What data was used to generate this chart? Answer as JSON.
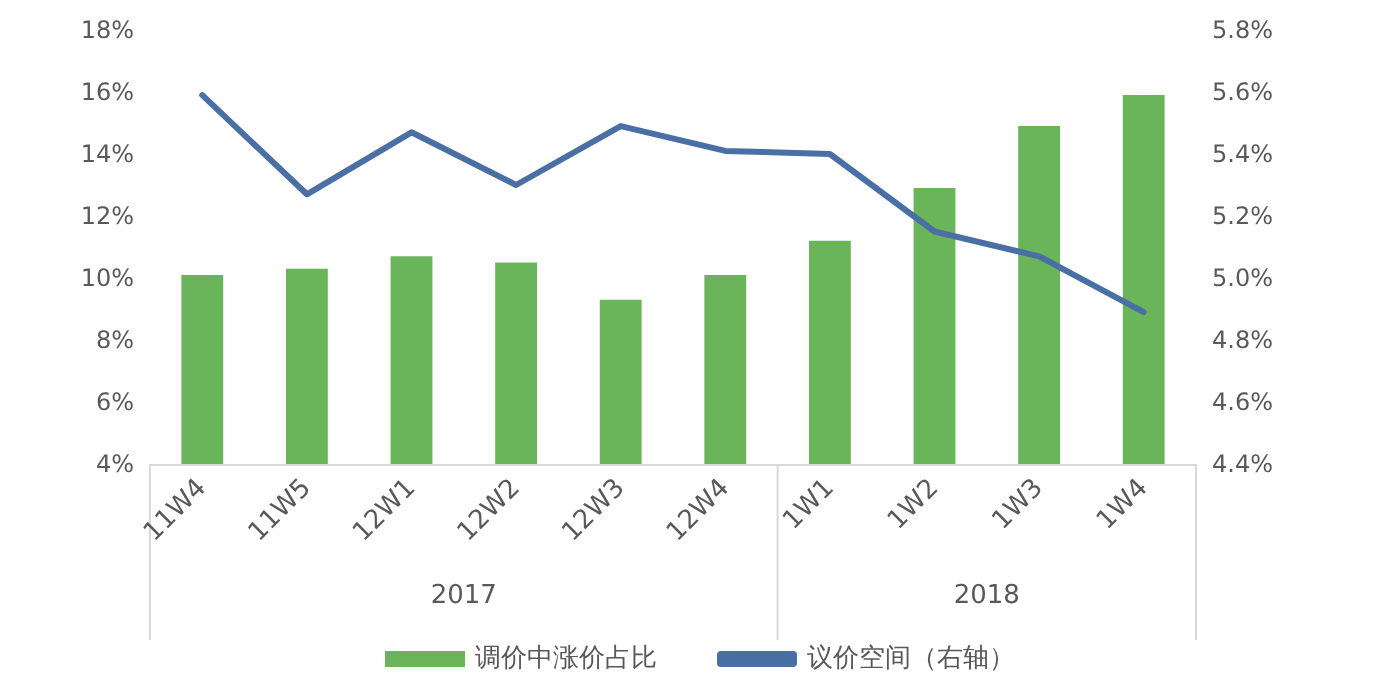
{
  "chart_data": {
    "type": "bar",
    "categories": [
      "11W4",
      "11W5",
      "12W1",
      "12W2",
      "12W3",
      "12W4",
      "1W1",
      "1W2",
      "1W3",
      "1W4"
    ],
    "series": [
      {
        "name": "调价中涨价占比",
        "color": "#6ab55a",
        "values": [
          10.1,
          10.3,
          10.7,
          10.5,
          9.3,
          10.1,
          11.2,
          12.9,
          14.9,
          15.9
        ]
      },
      {
        "name": "议价空间（右轴）",
        "type": "line",
        "axis": "y2",
        "color": "#4a6fa5",
        "values": [
          5.59,
          5.27,
          5.47,
          5.3,
          5.49,
          5.41,
          5.4,
          5.15,
          5.07,
          4.89
        ]
      }
    ],
    "ylim": [
      4,
      18
    ],
    "yticks": [
      {
        "value": 4,
        "label": "4%"
      },
      {
        "value": 6,
        "label": "6%"
      },
      {
        "value": 8,
        "label": "8%"
      },
      {
        "value": 10,
        "label": "10%"
      },
      {
        "value": 12,
        "label": "12%"
      },
      {
        "value": 14,
        "label": "14%"
      },
      {
        "value": 16,
        "label": "16%"
      },
      {
        "value": 18,
        "label": "18%"
      }
    ],
    "y2lim": [
      4.4,
      5.8
    ],
    "y2ticks": [
      {
        "value": 4.4,
        "label": "4.4%"
      },
      {
        "value": 4.6,
        "label": "4.6%"
      },
      {
        "value": 4.8,
        "label": "4.8%"
      },
      {
        "value": 5.0,
        "label": "5.0%"
      },
      {
        "value": 5.2,
        "label": "5.2%"
      },
      {
        "value": 5.4,
        "label": "5.4%"
      },
      {
        "value": 5.6,
        "label": "5.6%"
      },
      {
        "value": 5.8,
        "label": "5.8%"
      }
    ],
    "annotations": [
      "2017",
      "2018"
    ],
    "grid": false,
    "legend": "bottom",
    "marker": "none",
    "line_style": "solid"
  }
}
